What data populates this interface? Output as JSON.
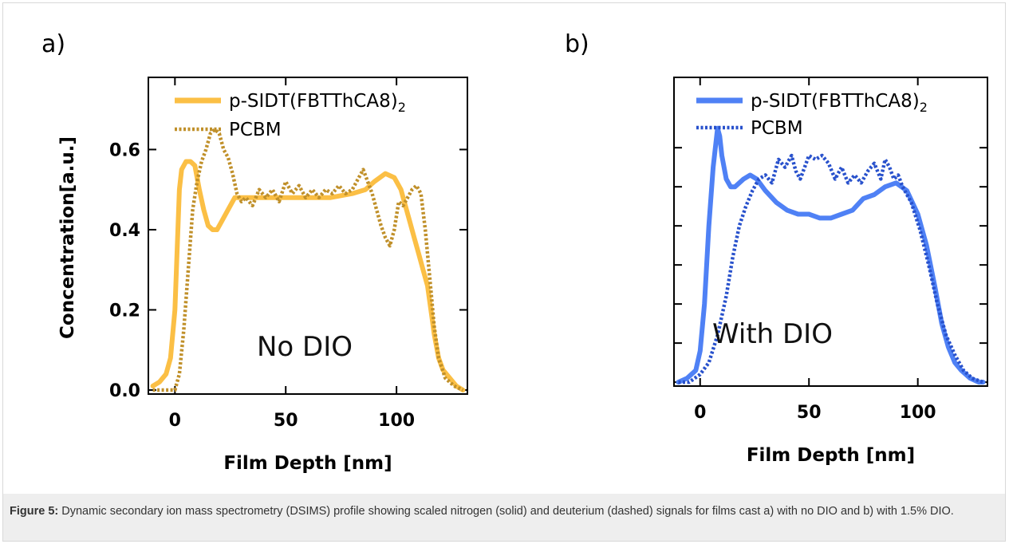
{
  "figure": {
    "caption_label": "Figure 5:",
    "caption_text": " Dynamic secondary ion mass spectrometry (DSIMS) profile showing scaled nitrogen (solid) and deuterium (dashed) signals for films cast a) with no DIO and b) with 1.5% DIO."
  },
  "colors": {
    "orange": "#fbbf45",
    "brown": "#c0902a",
    "blue": "#4f81f5",
    "blue_dotted": "#2851cc"
  },
  "chart_data": [
    {
      "type": "line",
      "panel_label": "a)",
      "annotation": "No DIO",
      "xlabel": "Film Depth [nm]",
      "ylabel": "Concentration[a.u.]",
      "xlim": [
        -12,
        132
      ],
      "ylim": [
        -0.01,
        0.78
      ],
      "xticks": [
        0,
        50,
        100
      ],
      "xtick_labels": [
        "0",
        "50",
        "100"
      ],
      "yticks": [
        0.0,
        0.2,
        0.4,
        0.6
      ],
      "ytick_labels": [
        "0.0",
        "0.2",
        "0.4",
        "0.6"
      ],
      "legend_position": "top",
      "series": [
        {
          "name": "p-SIDT(FBTThCA8)",
          "name_subscript": "2",
          "style": "solid",
          "color": "#fbbf45",
          "points": [
            [
              -10,
              0.01
            ],
            [
              -7,
              0.02
            ],
            [
              -4,
              0.04
            ],
            [
              -2,
              0.08
            ],
            [
              0,
              0.2
            ],
            [
              1,
              0.35
            ],
            [
              2,
              0.5
            ],
            [
              3,
              0.55
            ],
            [
              5,
              0.57
            ],
            [
              7,
              0.57
            ],
            [
              9,
              0.56
            ],
            [
              11,
              0.5
            ],
            [
              13,
              0.45
            ],
            [
              15,
              0.41
            ],
            [
              17,
              0.4
            ],
            [
              19,
              0.4
            ],
            [
              21,
              0.42
            ],
            [
              24,
              0.45
            ],
            [
              27,
              0.48
            ],
            [
              30,
              0.48
            ],
            [
              40,
              0.48
            ],
            [
              50,
              0.48
            ],
            [
              60,
              0.48
            ],
            [
              70,
              0.48
            ],
            [
              80,
              0.49
            ],
            [
              86,
              0.5
            ],
            [
              90,
              0.52
            ],
            [
              95,
              0.54
            ],
            [
              99,
              0.53
            ],
            [
              102,
              0.5
            ],
            [
              104,
              0.46
            ],
            [
              106,
              0.42
            ],
            [
              108,
              0.38
            ],
            [
              110,
              0.34
            ],
            [
              112,
              0.3
            ],
            [
              114,
              0.26
            ],
            [
              116,
              0.18
            ],
            [
              117,
              0.14
            ],
            [
              119,
              0.08
            ],
            [
              121,
              0.05
            ],
            [
              124,
              0.03
            ],
            [
              127,
              0.01
            ],
            [
              130,
              0.0
            ]
          ]
        },
        {
          "name": "PCBM",
          "style": "dotted",
          "color": "#c0902a",
          "points": [
            [
              -10,
              0.0
            ],
            [
              -6,
              0.0
            ],
            [
              0,
              0.0
            ],
            [
              2,
              0.04
            ],
            [
              4,
              0.15
            ],
            [
              6,
              0.3
            ],
            [
              8,
              0.45
            ],
            [
              10,
              0.52
            ],
            [
              12,
              0.57
            ],
            [
              14,
              0.6
            ],
            [
              16,
              0.64
            ],
            [
              18,
              0.65
            ],
            [
              20,
              0.64
            ],
            [
              22,
              0.6
            ],
            [
              24,
              0.58
            ],
            [
              26,
              0.54
            ],
            [
              28,
              0.49
            ],
            [
              30,
              0.47
            ],
            [
              32,
              0.48
            ],
            [
              35,
              0.46
            ],
            [
              38,
              0.5
            ],
            [
              41,
              0.48
            ],
            [
              44,
              0.5
            ],
            [
              47,
              0.47
            ],
            [
              50,
              0.52
            ],
            [
              53,
              0.49
            ],
            [
              56,
              0.51
            ],
            [
              59,
              0.48
            ],
            [
              62,
              0.5
            ],
            [
              65,
              0.48
            ],
            [
              68,
              0.5
            ],
            [
              71,
              0.49
            ],
            [
              74,
              0.51
            ],
            [
              77,
              0.49
            ],
            [
              80,
              0.5
            ],
            [
              83,
              0.53
            ],
            [
              85,
              0.55
            ],
            [
              87,
              0.52
            ],
            [
              89,
              0.49
            ],
            [
              91,
              0.45
            ],
            [
              93,
              0.41
            ],
            [
              95,
              0.38
            ],
            [
              97,
              0.36
            ],
            [
              99,
              0.4
            ],
            [
              101,
              0.47
            ],
            [
              103,
              0.46
            ],
            [
              105,
              0.48
            ],
            [
              107,
              0.5
            ],
            [
              109,
              0.51
            ],
            [
              111,
              0.49
            ],
            [
              113,
              0.4
            ],
            [
              115,
              0.28
            ],
            [
              117,
              0.16
            ],
            [
              119,
              0.08
            ],
            [
              122,
              0.03
            ],
            [
              126,
              0.01
            ],
            [
              130,
              0.0
            ]
          ]
        }
      ]
    },
    {
      "type": "line",
      "panel_label": "b)",
      "annotation": "With DIO",
      "xlabel": "Film Depth [nm]",
      "ylabel": "",
      "xlim": [
        -12,
        132
      ],
      "ylim": [
        -0.01,
        0.78
      ],
      "xticks": [
        0,
        50,
        100
      ],
      "xtick_labels": [
        "0",
        "50",
        "100"
      ],
      "yticks": [
        0.0,
        0.1,
        0.2,
        0.3,
        0.4,
        0.5,
        0.6
      ],
      "ytick_labels": [],
      "legend_position": "top",
      "series": [
        {
          "name": "p-SIDT(FBTThCA8)",
          "name_subscript": "2",
          "style": "solid",
          "color": "#4f81f5",
          "points": [
            [
              -10,
              0.0
            ],
            [
              -6,
              0.01
            ],
            [
              -2,
              0.03
            ],
            [
              0,
              0.08
            ],
            [
              2,
              0.2
            ],
            [
              4,
              0.4
            ],
            [
              6,
              0.55
            ],
            [
              8,
              0.65
            ],
            [
              9,
              0.63
            ],
            [
              10,
              0.58
            ],
            [
              12,
              0.52
            ],
            [
              14,
              0.5
            ],
            [
              16,
              0.5
            ],
            [
              18,
              0.51
            ],
            [
              20,
              0.52
            ],
            [
              23,
              0.53
            ],
            [
              26,
              0.52
            ],
            [
              30,
              0.49
            ],
            [
              35,
              0.46
            ],
            [
              40,
              0.44
            ],
            [
              45,
              0.43
            ],
            [
              50,
              0.43
            ],
            [
              55,
              0.42
            ],
            [
              60,
              0.42
            ],
            [
              65,
              0.43
            ],
            [
              70,
              0.44
            ],
            [
              75,
              0.47
            ],
            [
              80,
              0.48
            ],
            [
              85,
              0.5
            ],
            [
              90,
              0.51
            ],
            [
              95,
              0.49
            ],
            [
              100,
              0.43
            ],
            [
              104,
              0.35
            ],
            [
              108,
              0.24
            ],
            [
              111,
              0.15
            ],
            [
              114,
              0.09
            ],
            [
              117,
              0.05
            ],
            [
              120,
              0.03
            ],
            [
              124,
              0.01
            ],
            [
              128,
              0.0
            ],
            [
              130,
              0.0
            ]
          ]
        },
        {
          "name": "PCBM",
          "style": "dotted",
          "color": "#2851cc",
          "points": [
            [
              -10,
              0.0
            ],
            [
              -5,
              0.0
            ],
            [
              0,
              0.02
            ],
            [
              4,
              0.05
            ],
            [
              8,
              0.12
            ],
            [
              12,
              0.22
            ],
            [
              15,
              0.32
            ],
            [
              18,
              0.4
            ],
            [
              21,
              0.45
            ],
            [
              24,
              0.49
            ],
            [
              27,
              0.52
            ],
            [
              30,
              0.53
            ],
            [
              33,
              0.51
            ],
            [
              36,
              0.57
            ],
            [
              39,
              0.55
            ],
            [
              42,
              0.58
            ],
            [
              44,
              0.54
            ],
            [
              46,
              0.52
            ],
            [
              48,
              0.55
            ],
            [
              50,
              0.58
            ],
            [
              53,
              0.57
            ],
            [
              56,
              0.58
            ],
            [
              59,
              0.56
            ],
            [
              62,
              0.52
            ],
            [
              65,
              0.55
            ],
            [
              68,
              0.51
            ],
            [
              71,
              0.53
            ],
            [
              74,
              0.51
            ],
            [
              77,
              0.54
            ],
            [
              80,
              0.56
            ],
            [
              83,
              0.52
            ],
            [
              85,
              0.57
            ],
            [
              87,
              0.55
            ],
            [
              89,
              0.52
            ],
            [
              91,
              0.53
            ],
            [
              93,
              0.5
            ],
            [
              97,
              0.46
            ],
            [
              101,
              0.39
            ],
            [
              105,
              0.3
            ],
            [
              109,
              0.2
            ],
            [
              113,
              0.12
            ],
            [
              117,
              0.07
            ],
            [
              121,
              0.03
            ],
            [
              125,
              0.01
            ],
            [
              130,
              0.0
            ]
          ]
        }
      ]
    }
  ]
}
